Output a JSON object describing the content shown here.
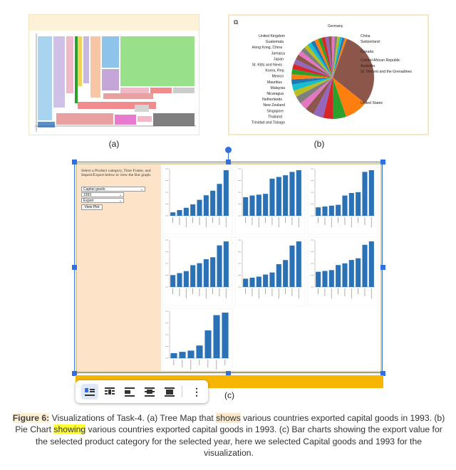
{
  "panels": {
    "a": {
      "label": "(a)"
    },
    "b": {
      "label": "(b)"
    },
    "c": {
      "label": "(c)"
    }
  },
  "pie": {
    "labels_left": [
      "United Kingdom",
      "Guatemala",
      "Hong Kong, China",
      "Jamaica",
      "Japan",
      "St. Kitts and Nevis",
      "Korea, Rep.",
      "Mexico",
      "Mauritius",
      "Malaysia",
      "Nicaragua",
      "Netherlands",
      "New Zealand",
      "Singapore",
      "Thailand",
      "Trinidad and Tobago"
    ],
    "labels_right": [
      "Germany",
      "China",
      "Switzerland",
      "Canada",
      "Central African Republic",
      "Australia",
      "St. Vincent and the Grenadines",
      "United States"
    ],
    "colors": [
      "#1f77b4",
      "#ff7f0e",
      "#2ca02c",
      "#d62728",
      "#9467bd",
      "#8c564b",
      "#e377c2",
      "#7f7f7f",
      "#bcbd22",
      "#17becf"
    ]
  },
  "dashboard": {
    "prompt": "Select a Product category, Time Frame, and Import/Export below to view the Bar graph.",
    "category_value": "Capital goods",
    "year_value": "1993",
    "flow_value": "Export",
    "view_button": "View Plot",
    "bar_color": "#2a72b5",
    "bar_charts": [
      [
        3,
        5,
        7,
        10,
        14,
        18,
        22,
        28,
        40
      ],
      [
        22,
        24,
        25,
        26,
        44,
        46,
        48,
        52,
        54
      ],
      [
        10,
        11,
        12,
        13,
        24,
        27,
        28,
        52,
        54
      ],
      [
        12,
        14,
        16,
        22,
        24,
        28,
        30,
        42,
        46
      ],
      [
        8,
        9,
        10,
        12,
        14,
        22,
        26,
        40,
        44
      ],
      [
        18,
        19,
        20,
        26,
        28,
        32,
        34,
        50,
        54
      ],
      [
        4,
        5,
        6,
        10,
        22,
        34,
        36
      ]
    ]
  },
  "toolbar": {
    "buttons": [
      "wrap-inline",
      "wrap-square",
      "wrap-left",
      "wrap-center",
      "wrap-behind"
    ],
    "more_icon": "⋮"
  },
  "caption": {
    "figure_label": "Figure 6:",
    "part1": " Visualizations of Task-4. (a) Tree Map that ",
    "shows_word": "shows",
    "part2": " various countries exported capital goods in 1993. (b) Pie Chart ",
    "showing_word": "showing",
    "part3": " various countries exported capital goods in 1993. (c) Bar charts showing the export value for the selected product category for the selected year, here we selected Capital goods and 1993 for the visualization."
  }
}
